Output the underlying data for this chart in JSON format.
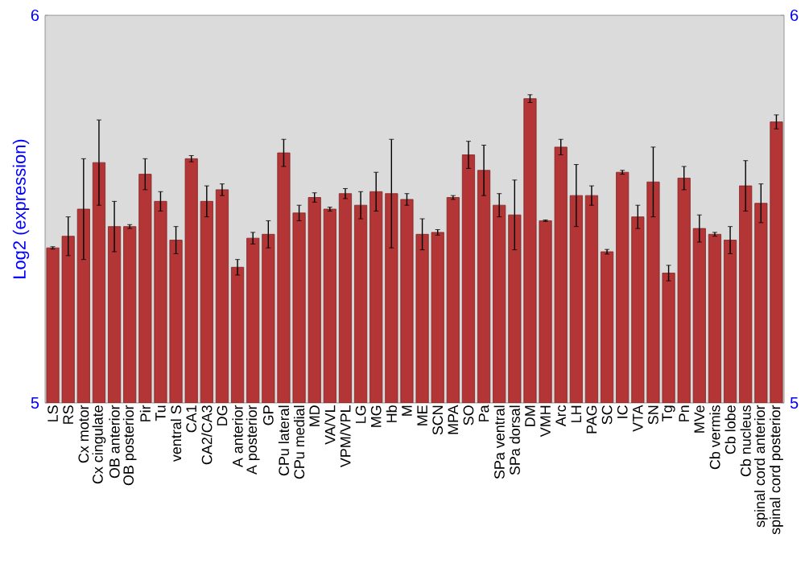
{
  "chart_data": {
    "type": "bar",
    "ylabel": "Log2 (expression)",
    "color": "#b33535",
    "categories": [
      "LS",
      "RS",
      "Cx motor",
      "Cx cingulate",
      "OB anterior",
      "OB posterior",
      "Pir",
      "Tu",
      "ventral S",
      "CA1",
      "CA2/CA3",
      "DG",
      "A anterior",
      "A posterior",
      "GP",
      "CPu lateral",
      "CPu medial",
      "MD",
      "VA/VL",
      "VPM/VPL",
      "LG",
      "MG",
      "Hb",
      "M",
      "ME",
      "SCN",
      "MPA",
      "SO",
      "Pa",
      "SPa ventral",
      "SPa dorsal",
      "DM",
      "VMH",
      "Arc",
      "LH",
      "PAG",
      "SC",
      "IC",
      "VTA",
      "SN",
      "Tg",
      "Pn",
      "MVe",
      "Cb vermis",
      "Cb lobe",
      "Cb nucleus",
      "spinal cord anterior",
      "spinal cord posterior"
    ],
    "values": [
      5.4,
      5.43,
      5.5,
      5.62,
      5.455,
      5.455,
      5.59,
      5.52,
      5.42,
      5.63,
      5.52,
      5.55,
      5.35,
      5.425,
      5.435,
      5.645,
      5.49,
      5.53,
      5.5,
      5.54,
      5.51,
      5.545,
      5.54,
      5.525,
      5.435,
      5.44,
      5.53,
      5.64,
      5.6,
      5.51,
      5.485,
      5.785,
      5.47,
      5.66,
      5.535,
      5.535,
      5.39,
      5.595,
      5.48,
      5.57,
      5.335,
      5.58,
      5.45,
      5.435,
      5.42,
      5.56,
      5.515,
      5.725
    ],
    "errors": [
      0.003,
      0.05,
      0.13,
      0.11,
      0.065,
      0.005,
      0.04,
      0.025,
      0.035,
      0.008,
      0.04,
      0.015,
      0.02,
      0.015,
      0.035,
      0.035,
      0.02,
      0.012,
      0.005,
      0.013,
      0.035,
      0.05,
      0.14,
      0.015,
      0.04,
      0.007,
      0.005,
      0.035,
      0.065,
      0.03,
      0.09,
      0.01,
      0.002,
      0.02,
      0.08,
      0.025,
      0.006,
      0.005,
      0.03,
      0.09,
      0.02,
      0.03,
      0.035,
      0.005,
      0.035,
      0.065,
      0.05,
      0.018
    ],
    "ylim": [
      5,
      6
    ],
    "yticks": [
      5,
      6
    ],
    "y2lim": [
      5,
      6
    ],
    "y2ticks": [
      5,
      6
    ],
    "grid": false
  }
}
